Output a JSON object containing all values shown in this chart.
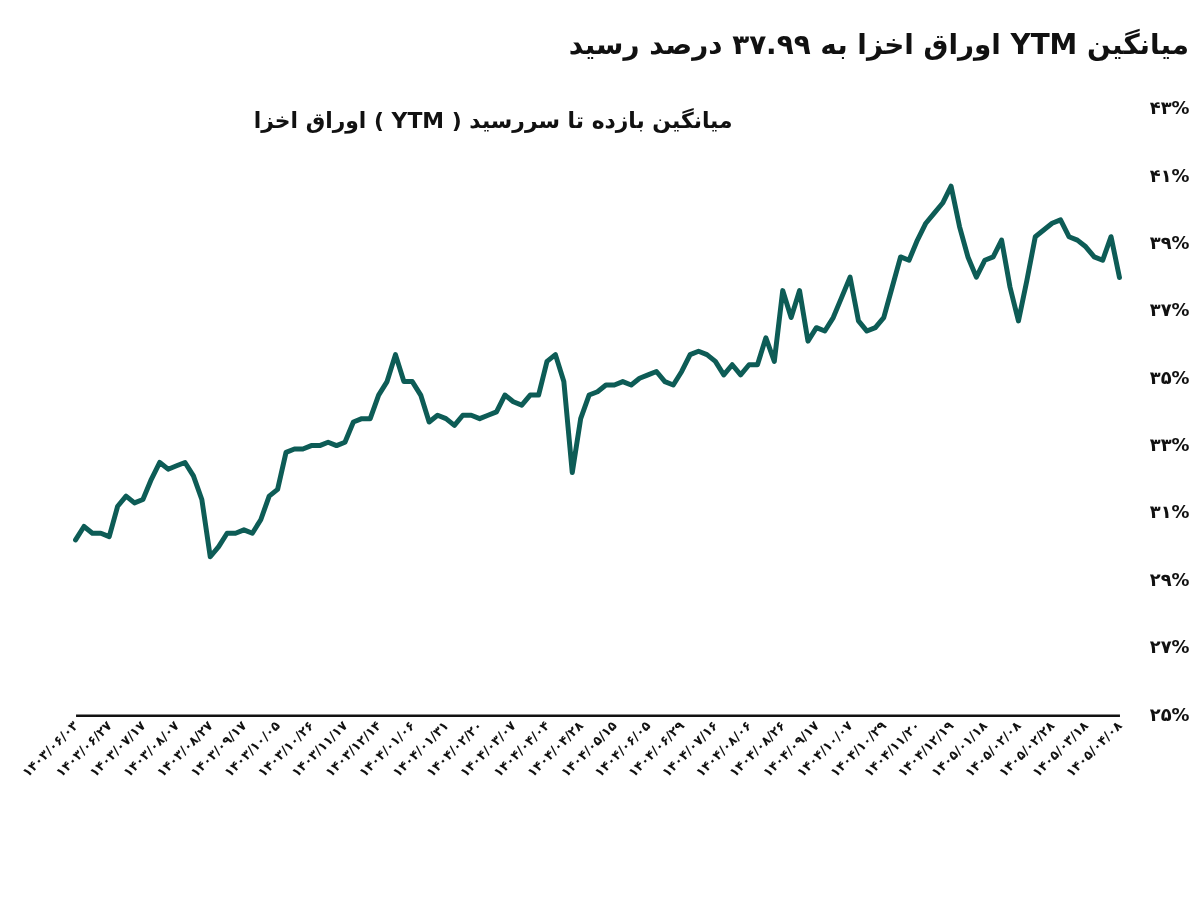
{
  "chart_data": {
    "type": "line",
    "title": "میانگین YTM اوراق اخزا به ۳۷.۹۹ درصد رسید",
    "subtitle": "میانگین بازده تا سررسید ( YTM ) اوراق اخزا",
    "categories": [
      "۱۴۰۳/۰۶/۰۳",
      null,
      null,
      null,
      "۱۴۰۳/۰۶/۲۷",
      null,
      null,
      null,
      "۱۴۰۳/۰۷/۱۷",
      null,
      null,
      null,
      "۱۴۰۳/۰۸/۰۷",
      null,
      null,
      null,
      "۱۴۰۳/۰۸/۲۷",
      null,
      null,
      null,
      "۱۴۰۳/۰۹/۱۷",
      null,
      null,
      null,
      "۱۴۰۳/۱۰/۰۵",
      null,
      null,
      null,
      "۱۴۰۳/۱۰/۲۶",
      null,
      null,
      null,
      "۱۴۰۳/۱۱/۱۷",
      null,
      null,
      null,
      "۱۴۰۳/۱۲/۱۴",
      null,
      null,
      null,
      "۱۴۰۴/۰۱/۰۶",
      null,
      null,
      null,
      "۱۴۰۴/۰۱/۳۱",
      null,
      null,
      null,
      "۱۴۰۴/۰۲/۲۰",
      null,
      null,
      null,
      "۱۴۰۴/۰۳/۰۷",
      null,
      null,
      null,
      "۱۴۰۴/۰۴/۰۴",
      null,
      null,
      null,
      "۱۴۰۴/۰۴/۲۸",
      null,
      null,
      null,
      "۱۴۰۴/۰۵/۱۵",
      null,
      null,
      null,
      "۱۴۰۴/۰۶/۰۵",
      null,
      null,
      null,
      "۱۴۰۴/۰۶/۲۹",
      null,
      null,
      null,
      "۱۴۰۴/۰۷/۱۶",
      null,
      null,
      null,
      "۱۴۰۴/۰۸/۰۶",
      null,
      null,
      null,
      "۱۴۰۴/۰۸/۲۶",
      null,
      null,
      null,
      "۱۴۰۴/۰۹/۱۷",
      null,
      null,
      null,
      "۱۴۰۴/۱۰/۰۷",
      null,
      null,
      null,
      "۱۴۰۴/۱۰/۲۹",
      null,
      null,
      null,
      "۱۴۰۴/۱۱/۲۰",
      null,
      null,
      null,
      "۱۴۰۴/۱۲/۱۹",
      null,
      null,
      null,
      "۱۴۰۵/۰۱/۱۸",
      null,
      null,
      null,
      "۱۴۰۵/۰۲/۰۸",
      null,
      null,
      null,
      "۱۴۰۵/۰۲/۲۸",
      null,
      null,
      null,
      "۱۴۰۵/۰۳/۱۸",
      null,
      null,
      null,
      "۱۴۰۵/۰۴/۰۸"
    ],
    "series": [
      {
        "color": "#0d5c56",
        "values": [
          30.2,
          30.6,
          30.4,
          30.4,
          30.3,
          31.2,
          31.5,
          31.3,
          31.4,
          32.0,
          32.5,
          32.3,
          32.4,
          32.5,
          32.1,
          31.4,
          29.7,
          30.0,
          30.4,
          30.4,
          30.5,
          30.4,
          30.8,
          31.5,
          31.7,
          32.8,
          32.9,
          32.9,
          33.0,
          33.0,
          33.1,
          33.0,
          33.1,
          33.7,
          33.8,
          33.8,
          34.5,
          34.9,
          35.7,
          34.9,
          34.9,
          34.5,
          33.7,
          33.9,
          33.8,
          33.6,
          33.9,
          33.9,
          33.8,
          33.9,
          34.0,
          34.5,
          34.3,
          34.2,
          34.5,
          34.5,
          35.5,
          35.7,
          34.9,
          32.2,
          33.8,
          34.5,
          34.6,
          34.8,
          34.8,
          34.9,
          34.8,
          35.0,
          35.1,
          35.2,
          34.9,
          34.8,
          35.2,
          35.7,
          35.8,
          35.7,
          35.5,
          35.1,
          35.4,
          35.1,
          35.4,
          35.4,
          36.2,
          35.5,
          37.6,
          36.8,
          37.6,
          36.1,
          36.5,
          36.4,
          36.8,
          37.4,
          38.0,
          36.7,
          36.4,
          36.5,
          36.8,
          37.7,
          38.6,
          38.5,
          39.1,
          39.6,
          39.9,
          40.2,
          40.7,
          39.5,
          38.6,
          38.0,
          38.5,
          38.6,
          39.1,
          37.7,
          36.7,
          37.9,
          39.2,
          39.4,
          39.6,
          39.7,
          39.2,
          39.1,
          38.9,
          38.6,
          38.5,
          39.2,
          37.99
        ]
      }
    ],
    "ylim": [
      25,
      43
    ],
    "yticks": [
      {
        "value": 25,
        "label": "۲۵%"
      },
      {
        "value": 27,
        "label": "۲۷%"
      },
      {
        "value": 29,
        "label": "۲۹%"
      },
      {
        "value": 31,
        "label": "۳۱%"
      },
      {
        "value": 33,
        "label": "۳۳%"
      },
      {
        "value": 35,
        "label": "۳۵%"
      },
      {
        "value": 37,
        "label": "۳۷%"
      },
      {
        "value": 39,
        "label": "۳۹%"
      },
      {
        "value": 41,
        "label": "۴۱%"
      },
      {
        "value": 43,
        "label": "۴۳%"
      }
    ],
    "grid": false,
    "legend": false,
    "marker": "none",
    "line_style": "solid"
  }
}
